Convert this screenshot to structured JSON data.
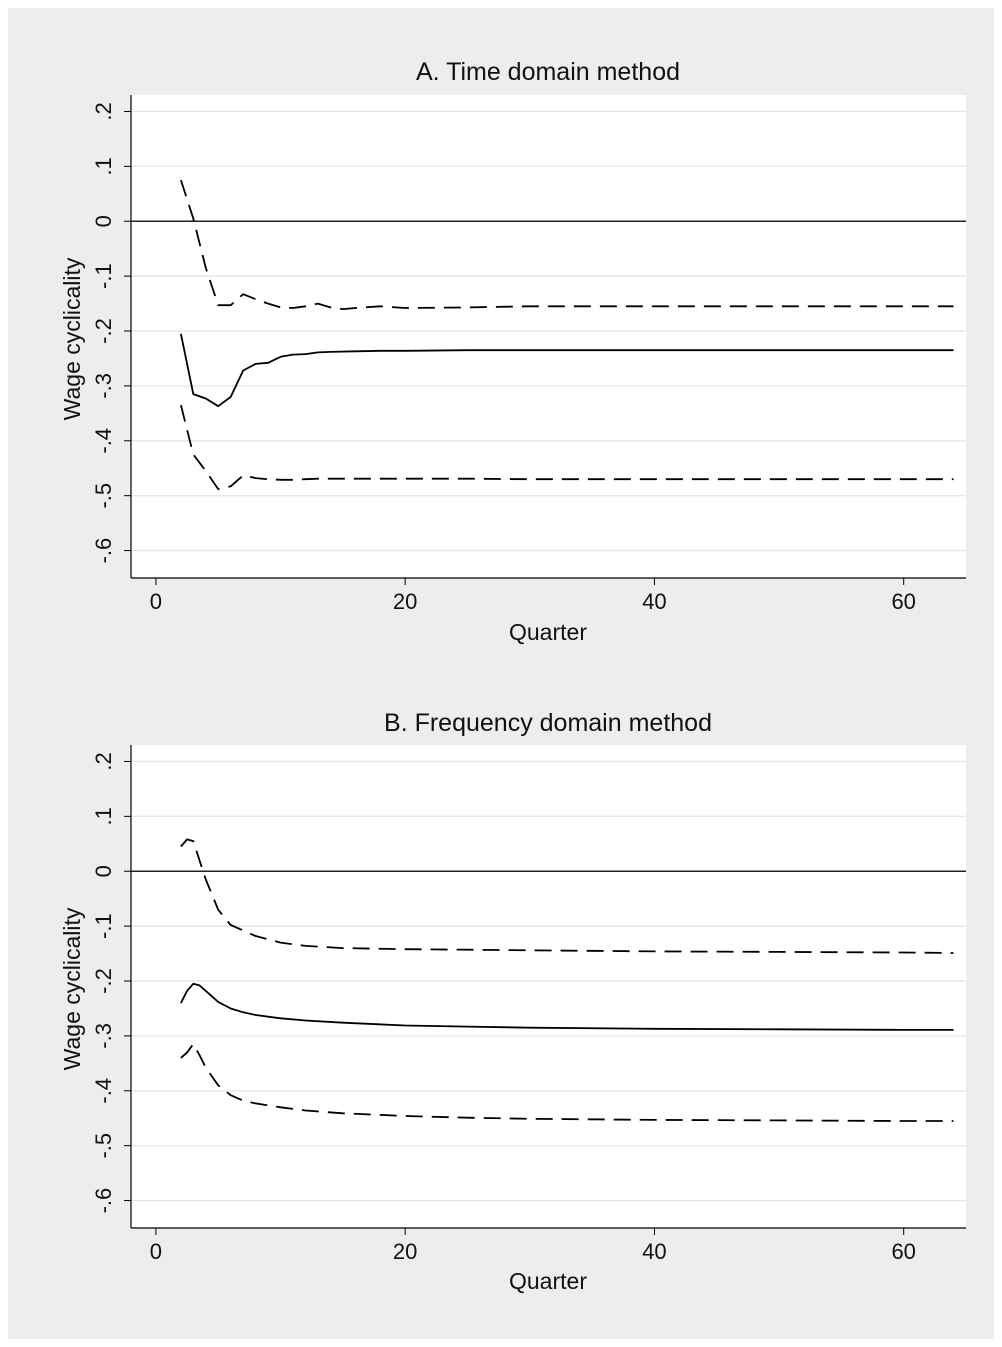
{
  "chart_data": [
    {
      "type": "line",
      "title": "A. Time domain method",
      "xlabel": "Quarter",
      "ylabel": "Wage cyclicality",
      "xlim": [
        -2,
        65
      ],
      "ylim": [
        -0.65,
        0.23
      ],
      "xticks": [
        0,
        20,
        40,
        60
      ],
      "xtick_labels": [
        "0",
        "20",
        "40",
        "60"
      ],
      "yticks": [
        0.2,
        0.1,
        0,
        -0.1,
        -0.2,
        -0.3,
        -0.4,
        -0.5,
        -0.6
      ],
      "ytick_labels": [
        ".2",
        ".1",
        "0",
        "-.1",
        "-.2",
        "-.3",
        "-.4",
        "-.5",
        "-.6"
      ],
      "grid": true,
      "reference_line_y": 0,
      "series": [
        {
          "style": "solid",
          "x": [
            2,
            3,
            4,
            5,
            6,
            7,
            8,
            9,
            10,
            11,
            12,
            13,
            14,
            16,
            18,
            20,
            25,
            30,
            40,
            50,
            60,
            64
          ],
          "y": [
            -0.205,
            -0.315,
            -0.323,
            -0.337,
            -0.32,
            -0.272,
            -0.26,
            -0.258,
            -0.247,
            -0.243,
            -0.242,
            -0.239,
            -0.238,
            -0.237,
            -0.236,
            -0.236,
            -0.235,
            -0.235,
            -0.235,
            -0.235,
            -0.235,
            -0.235
          ]
        },
        {
          "style": "dashed",
          "x": [
            2,
            3,
            4,
            5,
            6,
            7,
            8,
            9,
            10,
            11,
            12,
            13,
            14,
            15,
            16,
            18,
            20,
            25,
            30,
            40,
            50,
            60,
            64
          ],
          "y": [
            0.075,
            0.005,
            -0.085,
            -0.153,
            -0.153,
            -0.133,
            -0.142,
            -0.15,
            -0.157,
            -0.158,
            -0.155,
            -0.15,
            -0.157,
            -0.16,
            -0.158,
            -0.155,
            -0.158,
            -0.157,
            -0.155,
            -0.155,
            -0.155,
            -0.155,
            -0.155
          ]
        },
        {
          "style": "dashed",
          "x": [
            2,
            3,
            4,
            5,
            6,
            7,
            8,
            9,
            10,
            11,
            12,
            13,
            14,
            16,
            18,
            20,
            25,
            30,
            40,
            50,
            60,
            64
          ],
          "y": [
            -0.335,
            -0.425,
            -0.455,
            -0.488,
            -0.483,
            -0.463,
            -0.468,
            -0.47,
            -0.471,
            -0.471,
            -0.47,
            -0.469,
            -0.469,
            -0.469,
            -0.469,
            -0.469,
            -0.469,
            -0.47,
            -0.47,
            -0.47,
            -0.47,
            -0.47
          ]
        }
      ]
    },
    {
      "type": "line",
      "title": "B. Frequency domain method",
      "xlabel": "Quarter",
      "ylabel": "Wage cyclicality",
      "xlim": [
        -2,
        65
      ],
      "ylim": [
        -0.65,
        0.23
      ],
      "xticks": [
        0,
        20,
        40,
        60
      ],
      "xtick_labels": [
        "0",
        "20",
        "40",
        "60"
      ],
      "yticks": [
        0.2,
        0.1,
        0,
        -0.1,
        -0.2,
        -0.3,
        -0.4,
        -0.5,
        -0.6
      ],
      "ytick_labels": [
        ".2",
        ".1",
        "0",
        "-.1",
        "-.2",
        "-.3",
        "-.4",
        "-.5",
        "-.6"
      ],
      "grid": true,
      "reference_line_y": 0,
      "series": [
        {
          "style": "solid",
          "x": [
            2,
            2.5,
            3,
            3.5,
            4,
            5,
            6,
            7,
            8,
            10,
            12,
            15,
            20,
            25,
            30,
            40,
            50,
            60,
            64
          ],
          "y": [
            -0.24,
            -0.218,
            -0.205,
            -0.208,
            -0.218,
            -0.238,
            -0.25,
            -0.257,
            -0.262,
            -0.268,
            -0.272,
            -0.276,
            -0.281,
            -0.283,
            -0.285,
            -0.287,
            -0.288,
            -0.289,
            -0.289
          ]
        },
        {
          "style": "dashed",
          "x": [
            2,
            2.5,
            3,
            3.5,
            4,
            5,
            6,
            7,
            8,
            10,
            12,
            15,
            20,
            25,
            30,
            40,
            50,
            60,
            64
          ],
          "y": [
            0.045,
            0.058,
            0.055,
            0.02,
            -0.015,
            -0.07,
            -0.098,
            -0.108,
            -0.118,
            -0.13,
            -0.136,
            -0.14,
            -0.142,
            -0.143,
            -0.144,
            -0.146,
            -0.147,
            -0.148,
            -0.149
          ]
        },
        {
          "style": "dashed",
          "x": [
            2,
            2.5,
            3,
            3.5,
            4,
            5,
            6,
            7,
            8,
            10,
            12,
            15,
            20,
            25,
            30,
            40,
            50,
            60,
            64
          ],
          "y": [
            -0.34,
            -0.33,
            -0.315,
            -0.335,
            -0.358,
            -0.39,
            -0.408,
            -0.418,
            -0.423,
            -0.43,
            -0.436,
            -0.441,
            -0.446,
            -0.449,
            -0.451,
            -0.453,
            -0.454,
            -0.455,
            -0.455
          ]
        }
      ]
    }
  ]
}
